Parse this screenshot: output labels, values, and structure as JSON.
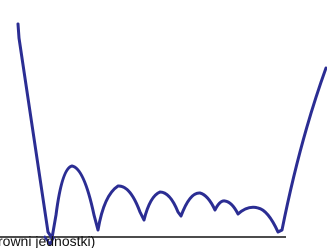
{
  "axis_label": "rowni jednostki)"
}
